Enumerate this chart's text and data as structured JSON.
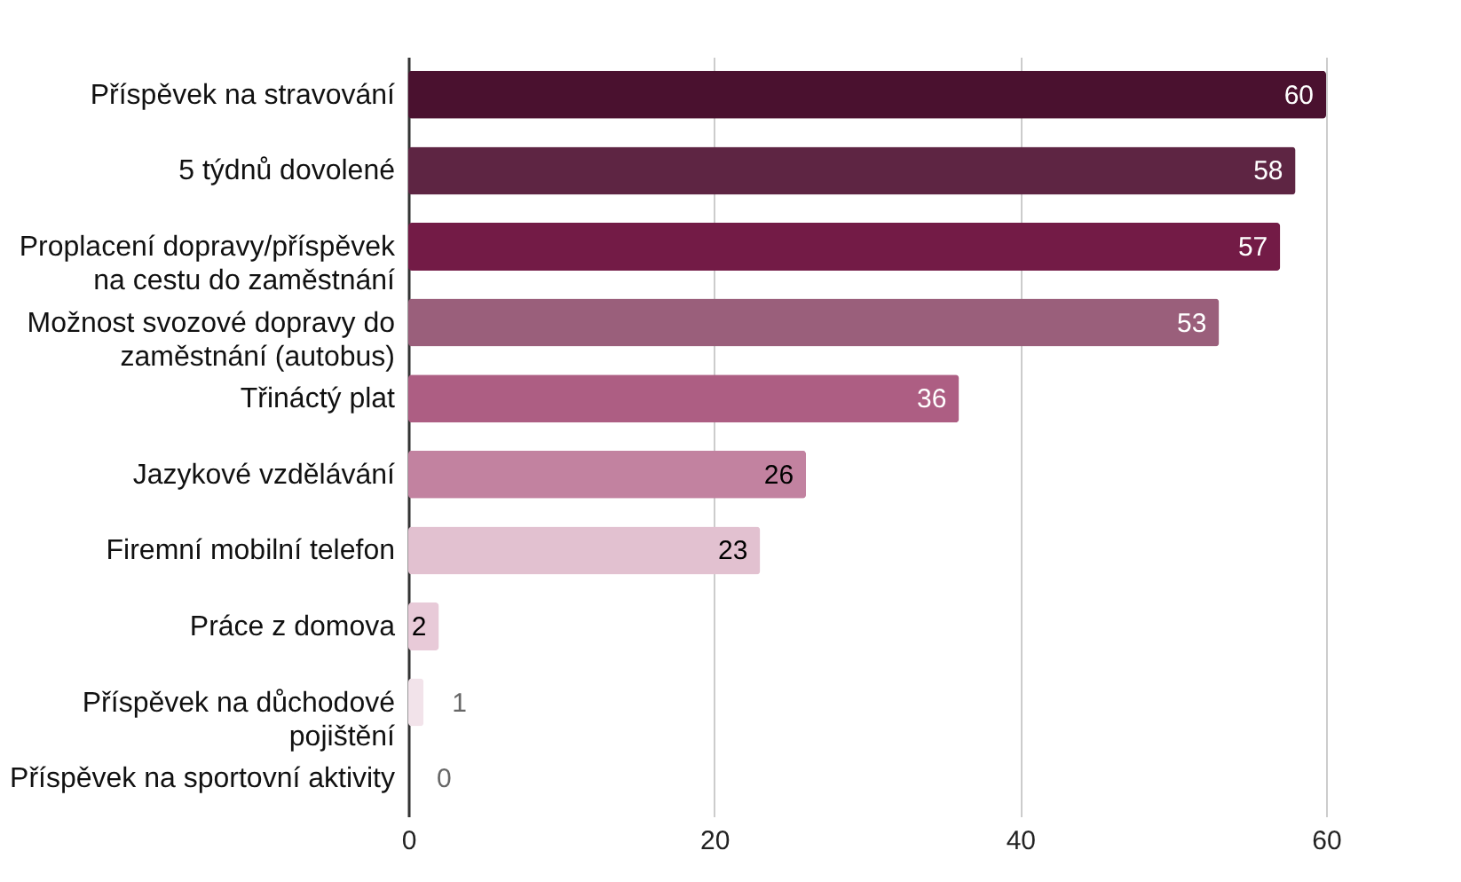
{
  "chart_data": {
    "type": "bar",
    "orientation": "horizontal",
    "categories": [
      "Příspěvek na stravování",
      "5 týdnů dovolené",
      "Proplacení dopravy/příspěvek\nna cestu do zaměstnání",
      "Možnost svozové dopravy do\nzaměstnání (autobus)",
      "Třináctý plat",
      "Jazykové vzdělávání",
      "Firemní mobilní telefon",
      "Práce z domova",
      "Příspěvek na důchodové\npojištění",
      "Příspěvek na sportovní aktivity"
    ],
    "values": [
      60,
      58,
      57,
      53,
      36,
      26,
      23,
      2,
      1,
      0
    ],
    "colors": [
      "#4a112f",
      "#5e2543",
      "#731b46",
      "#9a5f7b",
      "#ad5e83",
      "#c282a0",
      "#e2c1d0",
      "#e8cad8",
      "#f2e3ea",
      "#f2e3ea"
    ],
    "xlim": [
      0,
      60
    ],
    "xticks": [
      0,
      20,
      40,
      60
    ],
    "grid": "x",
    "data_labels": true
  }
}
